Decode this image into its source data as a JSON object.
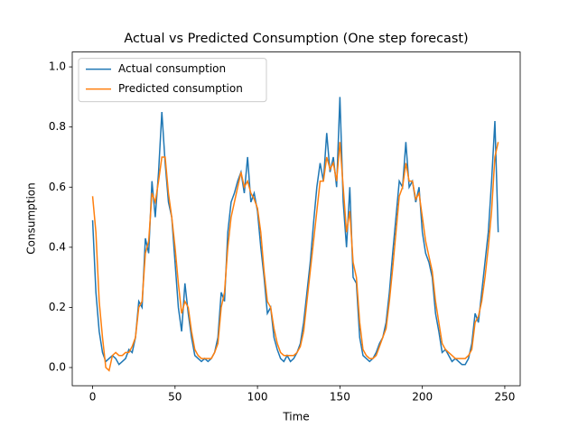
{
  "chart_data": {
    "type": "line",
    "title": "Actual vs Predicted Consumption (One step forecast)",
    "x_label": "Time",
    "y_label": "Consumption",
    "x": [
      0,
      2,
      4,
      6,
      8,
      10,
      12,
      14,
      16,
      18,
      20,
      22,
      24,
      26,
      28,
      30,
      32,
      34,
      36,
      38,
      40,
      42,
      44,
      46,
      48,
      50,
      52,
      54,
      56,
      58,
      60,
      62,
      64,
      66,
      68,
      70,
      72,
      74,
      76,
      78,
      80,
      82,
      84,
      86,
      88,
      90,
      92,
      94,
      96,
      98,
      100,
      102,
      104,
      106,
      108,
      110,
      112,
      114,
      116,
      118,
      120,
      122,
      124,
      126,
      128,
      130,
      132,
      134,
      136,
      138,
      140,
      142,
      144,
      146,
      148,
      150,
      152,
      154,
      156,
      158,
      160,
      162,
      164,
      166,
      168,
      170,
      172,
      174,
      176,
      178,
      180,
      182,
      184,
      186,
      188,
      190,
      192,
      194,
      196,
      198,
      200,
      202,
      204,
      206,
      208,
      210,
      212,
      214,
      216,
      218,
      220,
      222,
      224,
      226,
      228,
      230,
      232,
      234,
      236,
      238,
      240,
      242,
      244,
      246
    ],
    "series": [
      {
        "name": "Actual consumption",
        "color": "#1f77b4",
        "values": [
          0.49,
          0.25,
          0.12,
          0.05,
          0.02,
          0.03,
          0.04,
          0.03,
          0.01,
          0.02,
          0.03,
          0.06,
          0.05,
          0.1,
          0.22,
          0.2,
          0.43,
          0.38,
          0.62,
          0.5,
          0.65,
          0.85,
          0.68,
          0.55,
          0.5,
          0.35,
          0.2,
          0.12,
          0.28,
          0.18,
          0.1,
          0.04,
          0.03,
          0.02,
          0.03,
          0.02,
          0.03,
          0.05,
          0.1,
          0.25,
          0.22,
          0.45,
          0.55,
          0.58,
          0.62,
          0.65,
          0.58,
          0.7,
          0.55,
          0.58,
          0.52,
          0.4,
          0.3,
          0.18,
          0.2,
          0.1,
          0.06,
          0.03,
          0.02,
          0.04,
          0.02,
          0.03,
          0.05,
          0.08,
          0.15,
          0.25,
          0.35,
          0.48,
          0.6,
          0.68,
          0.62,
          0.78,
          0.65,
          0.7,
          0.6,
          0.9,
          0.55,
          0.4,
          0.6,
          0.3,
          0.28,
          0.1,
          0.04,
          0.03,
          0.02,
          0.03,
          0.05,
          0.08,
          0.1,
          0.15,
          0.25,
          0.38,
          0.5,
          0.62,
          0.6,
          0.75,
          0.6,
          0.62,
          0.55,
          0.6,
          0.45,
          0.38,
          0.35,
          0.3,
          0.18,
          0.12,
          0.05,
          0.06,
          0.04,
          0.02,
          0.03,
          0.02,
          0.01,
          0.01,
          0.03,
          0.08,
          0.18,
          0.15,
          0.25,
          0.35,
          0.45,
          0.62,
          0.82,
          0.45
        ]
      },
      {
        "name": "Predicted consumption",
        "color": "#ff7f0e",
        "values": [
          0.57,
          0.45,
          0.22,
          0.1,
          0.0,
          -0.01,
          0.04,
          0.05,
          0.04,
          0.04,
          0.05,
          0.05,
          0.07,
          0.1,
          0.2,
          0.22,
          0.38,
          0.42,
          0.58,
          0.55,
          0.62,
          0.7,
          0.7,
          0.58,
          0.5,
          0.4,
          0.28,
          0.18,
          0.22,
          0.2,
          0.12,
          0.06,
          0.04,
          0.03,
          0.03,
          0.03,
          0.03,
          0.05,
          0.08,
          0.2,
          0.25,
          0.4,
          0.5,
          0.55,
          0.6,
          0.65,
          0.6,
          0.62,
          0.58,
          0.56,
          0.53,
          0.45,
          0.32,
          0.22,
          0.2,
          0.13,
          0.08,
          0.05,
          0.04,
          0.04,
          0.04,
          0.04,
          0.05,
          0.07,
          0.12,
          0.22,
          0.32,
          0.42,
          0.52,
          0.62,
          0.62,
          0.7,
          0.66,
          0.68,
          0.62,
          0.75,
          0.6,
          0.45,
          0.52,
          0.35,
          0.3,
          0.15,
          0.06,
          0.04,
          0.03,
          0.03,
          0.04,
          0.07,
          0.1,
          0.13,
          0.22,
          0.33,
          0.45,
          0.57,
          0.6,
          0.68,
          0.62,
          0.62,
          0.56,
          0.58,
          0.5,
          0.42,
          0.37,
          0.32,
          0.22,
          0.15,
          0.08,
          0.06,
          0.05,
          0.04,
          0.03,
          0.03,
          0.03,
          0.03,
          0.04,
          0.06,
          0.15,
          0.17,
          0.22,
          0.3,
          0.4,
          0.52,
          0.7,
          0.75
        ]
      }
    ],
    "xlim": [
      -12.35,
      259.35
    ],
    "xticks": [
      0,
      50,
      100,
      150,
      200,
      250
    ],
    "ylim": [
      -0.0605,
      1.0495
    ],
    "yticks": [
      {
        "value": 0,
        "label": "0.0"
      },
      0.2,
      0.4,
      0.6,
      0.8,
      {
        "value": 1,
        "label": "1.0"
      }
    ],
    "legend": "upper left",
    "grid": false
  }
}
